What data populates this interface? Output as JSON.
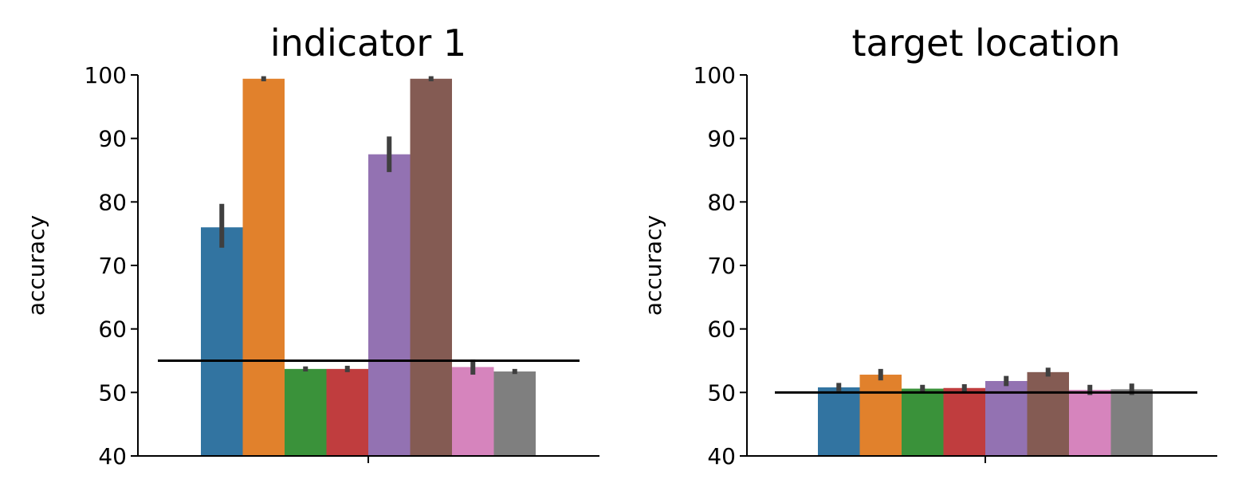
{
  "chart_data": [
    {
      "type": "bar",
      "title": "indicator 1",
      "xlabel": "",
      "ylabel": "accuracy",
      "ylim": [
        40,
        100
      ],
      "yticks": [
        "40",
        "50",
        "60",
        "70",
        "80",
        "90",
        "100"
      ],
      "colors": [
        "#3274a1",
        "#e1812c",
        "#3a923a",
        "#c03d3e",
        "#9372b2",
        "#845b53",
        "#d684bd",
        "#7f7f7f"
      ],
      "values": [
        76.0,
        99.4,
        53.7,
        53.7,
        87.5,
        99.4,
        54.0,
        53.3
      ],
      "error_low": [
        72.8,
        99.0,
        53.3,
        53.2,
        84.7,
        99.0,
        52.8,
        52.9
      ],
      "error_high": [
        79.7,
        99.8,
        54.1,
        54.2,
        90.3,
        99.8,
        55.2,
        53.7
      ],
      "reference_line": 55.0,
      "grid": false
    },
    {
      "type": "bar",
      "title": "target location",
      "xlabel": "",
      "ylabel": "accuracy",
      "ylim": [
        40,
        100
      ],
      "yticks": [
        "40",
        "50",
        "60",
        "70",
        "80",
        "90",
        "100"
      ],
      "colors": [
        "#3274a1",
        "#e1812c",
        "#3a923a",
        "#c03d3e",
        "#9372b2",
        "#845b53",
        "#d684bd",
        "#7f7f7f"
      ],
      "values": [
        50.8,
        52.8,
        50.6,
        50.7,
        51.8,
        53.2,
        50.4,
        50.5
      ],
      "error_low": [
        50.2,
        51.9,
        50.0,
        50.1,
        51.0,
        52.5,
        49.6,
        49.6
      ],
      "error_high": [
        51.5,
        53.7,
        51.2,
        51.3,
        52.6,
        53.9,
        51.2,
        51.4
      ],
      "reference_line": 50.0,
      "grid": false
    }
  ]
}
